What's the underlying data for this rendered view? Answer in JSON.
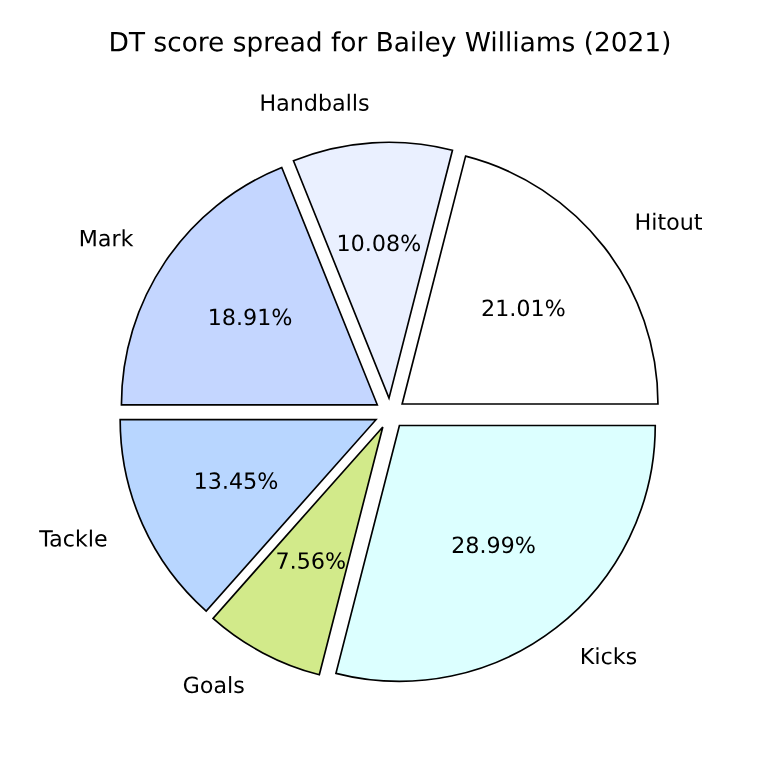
{
  "chart_data": {
    "type": "pie",
    "title": "DT score spread for Bailey Williams (2021)",
    "categories": [
      "Hitout",
      "Handballs",
      "Mark",
      "Tackle",
      "Goals",
      "Kicks"
    ],
    "values": [
      21.01,
      10.08,
      18.91,
      13.45,
      7.56,
      28.99
    ],
    "value_labels": [
      "21.01%",
      "10.08%",
      "18.91%",
      "13.45%",
      "7.56%",
      "28.99%"
    ],
    "colors": [
      "#ffffff",
      "#eaf0ff",
      "#c4d6ff",
      "#b8d6ff",
      "#d2ea8a",
      "#dcffff"
    ],
    "legend": false
  }
}
